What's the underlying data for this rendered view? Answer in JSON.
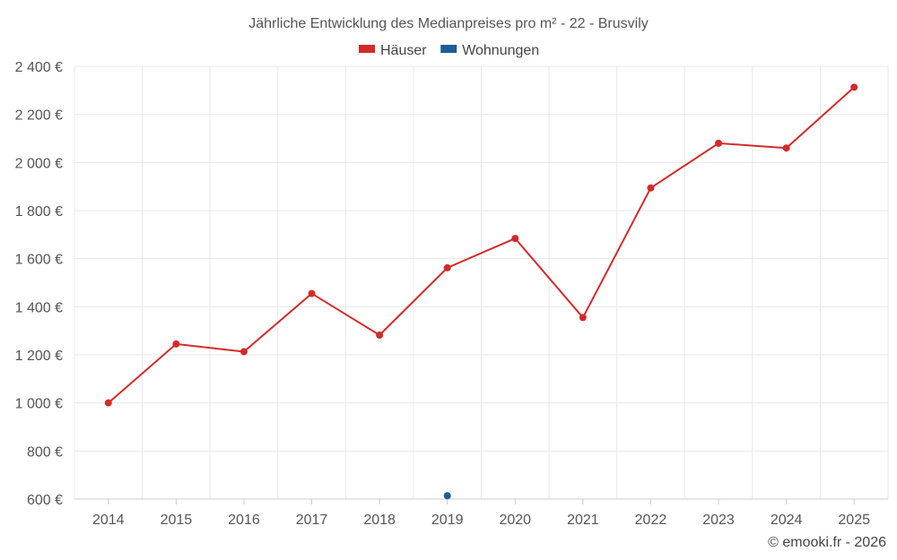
{
  "chart_data": {
    "type": "line",
    "title": "Jährliche Entwicklung des Medianpreises pro m² - 22 - Brusvily",
    "categories": [
      "2014",
      "2015",
      "2016",
      "2017",
      "2018",
      "2019",
      "2020",
      "2021",
      "2022",
      "2023",
      "2024",
      "2025"
    ],
    "series": [
      {
        "name": "Häuser",
        "color": "#d32a2a",
        "values": [
          1000,
          1245,
          1213,
          1455,
          1282,
          1562,
          1684,
          1355,
          1894,
          2080,
          2060,
          2313
        ]
      },
      {
        "name": "Wohnungen",
        "color": "#1a5f96",
        "values": [
          null,
          null,
          null,
          null,
          null,
          614,
          null,
          null,
          null,
          null,
          null,
          null
        ]
      }
    ],
    "ylim": [
      600,
      2400
    ],
    "yticks": [
      600,
      800,
      1000,
      1200,
      1400,
      1600,
      1800,
      2000,
      2200,
      2400
    ],
    "ytick_labels": [
      "600 €",
      "800 €",
      "1 000 €",
      "1 200 €",
      "1 400 €",
      "1 600 €",
      "1 800 €",
      "2 000 €",
      "2 200 €",
      "2 400 €"
    ],
    "grid": true,
    "legend_position": "top-center"
  },
  "credit": "© emooki.fr - 2026"
}
